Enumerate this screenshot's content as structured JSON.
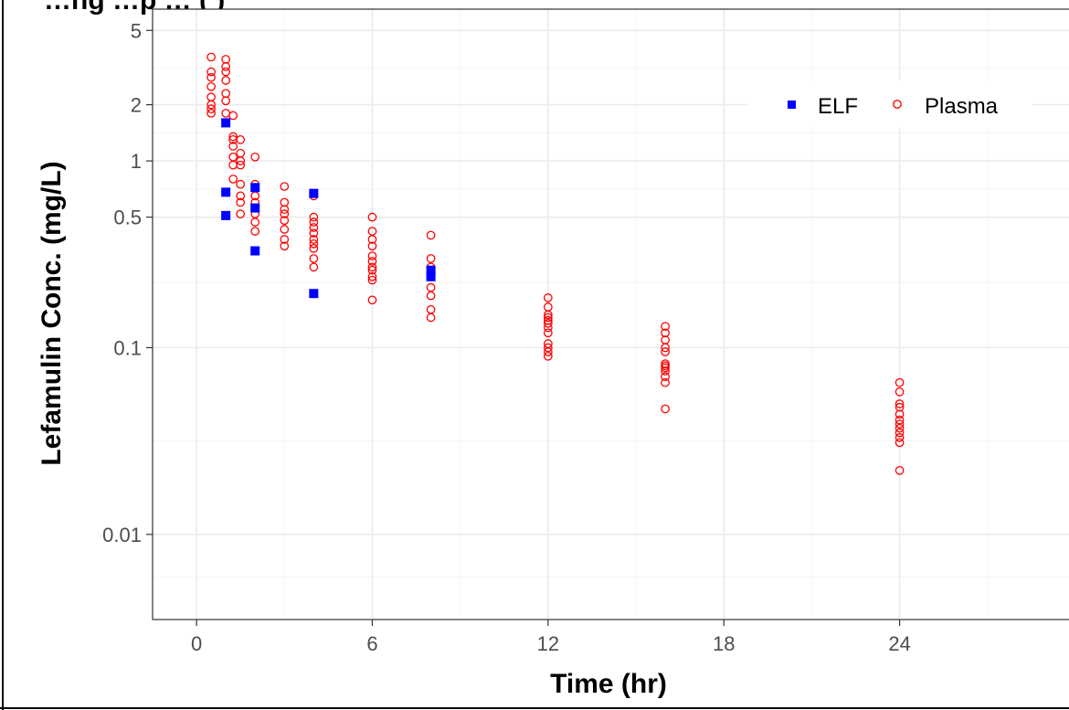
{
  "chart_data": {
    "type": "scatter",
    "title": "…ng                                    …p               … (     )",
    "xlabel": "Time (hr)",
    "ylabel": "Lefamulin Conc. (mg/L)",
    "x_scale": "linear",
    "y_scale": "log10",
    "xlim": [
      -1.5,
      30
    ],
    "ylim": [
      0.0035,
      6.5
    ],
    "x_ticks": [
      0,
      6,
      12,
      18,
      24
    ],
    "x_tick_labels": [
      "0",
      "6",
      "12",
      "18",
      "24"
    ],
    "y_ticks": [
      0.01,
      0.1,
      0.5,
      1,
      2,
      5
    ],
    "y_tick_labels": [
      "0.01",
      "0.1",
      "0.5",
      "1",
      "2",
      "5"
    ],
    "grid": true,
    "legend_position": "top-right",
    "series": [
      {
        "name": "ELF",
        "marker": "filled-square",
        "color": "#0000ff",
        "points": [
          [
            1.0,
            1.6
          ],
          [
            1.0,
            0.68
          ],
          [
            1.0,
            0.51
          ],
          [
            2.0,
            0.72
          ],
          [
            2.0,
            0.56
          ],
          [
            2.0,
            0.33
          ],
          [
            4.0,
            0.67
          ],
          [
            4.0,
            0.195
          ],
          [
            8.0,
            0.26
          ],
          [
            8.0,
            0.24
          ]
        ]
      },
      {
        "name": "Plasma",
        "marker": "open-circle",
        "color": "#ff0000",
        "points": [
          [
            0.5,
            3.6
          ],
          [
            0.5,
            3.0
          ],
          [
            0.5,
            2.8
          ],
          [
            0.5,
            2.5
          ],
          [
            0.5,
            2.2
          ],
          [
            0.5,
            2.0
          ],
          [
            0.5,
            1.9
          ],
          [
            0.5,
            1.8
          ],
          [
            1.0,
            3.5
          ],
          [
            1.0,
            3.2
          ],
          [
            1.0,
            3.0
          ],
          [
            1.0,
            2.7
          ],
          [
            1.0,
            2.3
          ],
          [
            1.0,
            2.1
          ],
          [
            1.0,
            1.8
          ],
          [
            1.25,
            1.75
          ],
          [
            1.25,
            1.35
          ],
          [
            1.25,
            1.3
          ],
          [
            1.25,
            1.2
          ],
          [
            1.25,
            1.05
          ],
          [
            1.25,
            0.95
          ],
          [
            1.25,
            0.8
          ],
          [
            1.5,
            1.3
          ],
          [
            1.5,
            1.1
          ],
          [
            1.5,
            1.0
          ],
          [
            1.5,
            0.95
          ],
          [
            1.5,
            0.75
          ],
          [
            1.5,
            0.65
          ],
          [
            1.5,
            0.6
          ],
          [
            1.5,
            0.52
          ],
          [
            2.0,
            1.05
          ],
          [
            2.0,
            0.75
          ],
          [
            2.0,
            0.65
          ],
          [
            2.0,
            0.6
          ],
          [
            2.0,
            0.52
          ],
          [
            2.0,
            0.47
          ],
          [
            2.0,
            0.42
          ],
          [
            3.0,
            0.73
          ],
          [
            3.0,
            0.6
          ],
          [
            3.0,
            0.55
          ],
          [
            3.0,
            0.52
          ],
          [
            3.0,
            0.48
          ],
          [
            3.0,
            0.43
          ],
          [
            3.0,
            0.38
          ],
          [
            3.0,
            0.35
          ],
          [
            4.0,
            0.65
          ],
          [
            4.0,
            0.5
          ],
          [
            4.0,
            0.47
          ],
          [
            4.0,
            0.44
          ],
          [
            4.0,
            0.41
          ],
          [
            4.0,
            0.38
          ],
          [
            4.0,
            0.36
          ],
          [
            4.0,
            0.34
          ],
          [
            4.0,
            0.3
          ],
          [
            4.0,
            0.27
          ],
          [
            6.0,
            0.5
          ],
          [
            6.0,
            0.42
          ],
          [
            6.0,
            0.38
          ],
          [
            6.0,
            0.35
          ],
          [
            6.0,
            0.31
          ],
          [
            6.0,
            0.29
          ],
          [
            6.0,
            0.27
          ],
          [
            6.0,
            0.26
          ],
          [
            6.0,
            0.24
          ],
          [
            6.0,
            0.23
          ],
          [
            6.0,
            0.18
          ],
          [
            8.0,
            0.4
          ],
          [
            8.0,
            0.3
          ],
          [
            8.0,
            0.27
          ],
          [
            8.0,
            0.24
          ],
          [
            8.0,
            0.21
          ],
          [
            8.0,
            0.19
          ],
          [
            8.0,
            0.16
          ],
          [
            8.0,
            0.145
          ],
          [
            12.0,
            0.185
          ],
          [
            12.0,
            0.165
          ],
          [
            12.0,
            0.15
          ],
          [
            12.0,
            0.145
          ],
          [
            12.0,
            0.14
          ],
          [
            12.0,
            0.135
          ],
          [
            12.0,
            0.128
          ],
          [
            12.0,
            0.12
          ],
          [
            12.0,
            0.105
          ],
          [
            12.0,
            0.1
          ],
          [
            12.0,
            0.095
          ],
          [
            12.0,
            0.09
          ],
          [
            16.0,
            0.13
          ],
          [
            16.0,
            0.12
          ],
          [
            16.0,
            0.11
          ],
          [
            16.0,
            0.1
          ],
          [
            16.0,
            0.095
          ],
          [
            16.0,
            0.082
          ],
          [
            16.0,
            0.08
          ],
          [
            16.0,
            0.078
          ],
          [
            16.0,
            0.075
          ],
          [
            16.0,
            0.07
          ],
          [
            16.0,
            0.065
          ],
          [
            16.0,
            0.047
          ],
          [
            24.0,
            0.065
          ],
          [
            24.0,
            0.058
          ],
          [
            24.0,
            0.05
          ],
          [
            24.0,
            0.048
          ],
          [
            24.0,
            0.044
          ],
          [
            24.0,
            0.041
          ],
          [
            24.0,
            0.039
          ],
          [
            24.0,
            0.037
          ],
          [
            24.0,
            0.035
          ],
          [
            24.0,
            0.033
          ],
          [
            24.0,
            0.031
          ],
          [
            24.0,
            0.022
          ]
        ]
      }
    ],
    "colors": {
      "elf": "#0000ff",
      "plasma": "#ff0000",
      "grid_major": "#ebebeb",
      "grid_minor": "#f5f5f5",
      "panel_border": "#333333",
      "tick_text": "#4d4d4d"
    }
  }
}
